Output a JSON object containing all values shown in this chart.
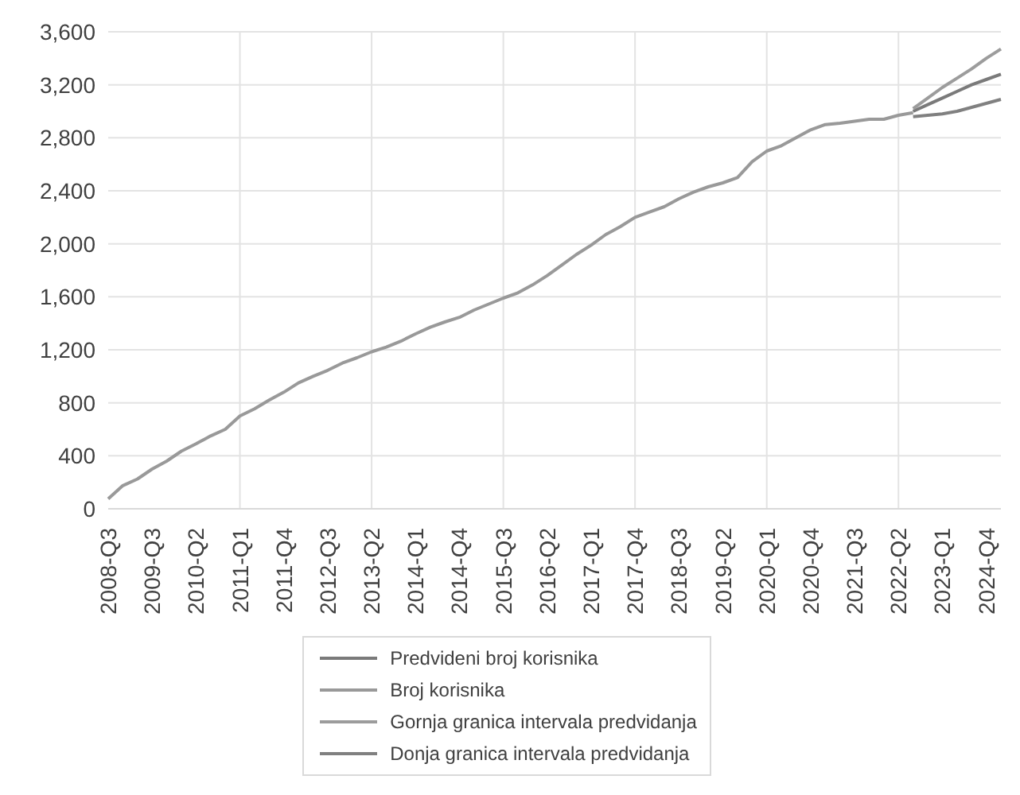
{
  "chart_data": {
    "type": "line",
    "categories": [
      "2008-Q3",
      null,
      null,
      "2009-Q3",
      null,
      null,
      "2010-Q2",
      null,
      null,
      "2011-Q1",
      null,
      null,
      "2011-Q4",
      null,
      null,
      "2012-Q3",
      null,
      null,
      "2013-Q2",
      null,
      null,
      "2014-Q1",
      null,
      null,
      "2014-Q4",
      null,
      null,
      "2015-Q3",
      null,
      null,
      "2016-Q2",
      null,
      null,
      "2017-Q1",
      null,
      null,
      "2017-Q4",
      null,
      null,
      "2018-Q3",
      null,
      null,
      "2019-Q2",
      null,
      null,
      "2020-Q1",
      null,
      null,
      "2020-Q4",
      null,
      null,
      "2021-Q3",
      null,
      null,
      "2022-Q2",
      null,
      null,
      "2023-Q1",
      null,
      null,
      "2024-Q4",
      null
    ],
    "series": [
      {
        "name": "Predvideni broj korisnika",
        "color": "#7a7a7a",
        "values": [
          null,
          null,
          null,
          null,
          null,
          null,
          null,
          null,
          null,
          null,
          null,
          null,
          null,
          null,
          null,
          null,
          null,
          null,
          null,
          null,
          null,
          null,
          null,
          null,
          null,
          null,
          null,
          null,
          null,
          null,
          null,
          null,
          null,
          null,
          null,
          null,
          null,
          null,
          null,
          null,
          null,
          null,
          null,
          null,
          null,
          null,
          null,
          null,
          null,
          null,
          null,
          null,
          null,
          null,
          null,
          3000,
          3050,
          3100,
          3150,
          3200,
          3240,
          3280
        ]
      },
      {
        "name": "Broj korisnika",
        "color": "#999999",
        "values": [
          75,
          175,
          225,
          300,
          360,
          435,
          490,
          550,
          600,
          700,
          755,
          820,
          880,
          950,
          1000,
          1045,
          1100,
          1140,
          1185,
          1220,
          1265,
          1320,
          1370,
          1410,
          1445,
          1500,
          1545,
          1590,
          1630,
          1690,
          1760,
          1840,
          1920,
          1990,
          2070,
          2130,
          2200,
          2240,
          2280,
          2340,
          2390,
          2430,
          2460,
          2500,
          2620,
          2700,
          2740,
          2800,
          2860,
          2900,
          2910,
          2925,
          2940,
          2940,
          2970,
          2990,
          null,
          null,
          null,
          null,
          null,
          null
        ]
      },
      {
        "name": "Gornja granica intervala predvidanja",
        "color": "#9c9c9c",
        "values": [
          null,
          null,
          null,
          null,
          null,
          null,
          null,
          null,
          null,
          null,
          null,
          null,
          null,
          null,
          null,
          null,
          null,
          null,
          null,
          null,
          null,
          null,
          null,
          null,
          null,
          null,
          null,
          null,
          null,
          null,
          null,
          null,
          null,
          null,
          null,
          null,
          null,
          null,
          null,
          null,
          null,
          null,
          null,
          null,
          null,
          null,
          null,
          null,
          null,
          null,
          null,
          null,
          null,
          null,
          null,
          3020,
          3100,
          3180,
          3250,
          3320,
          3400,
          3470
        ]
      },
      {
        "name": "Donja granica intervala predvidanja",
        "color": "#808080",
        "values": [
          null,
          null,
          null,
          null,
          null,
          null,
          null,
          null,
          null,
          null,
          null,
          null,
          null,
          null,
          null,
          null,
          null,
          null,
          null,
          null,
          null,
          null,
          null,
          null,
          null,
          null,
          null,
          null,
          null,
          null,
          null,
          null,
          null,
          null,
          null,
          null,
          null,
          null,
          null,
          null,
          null,
          null,
          null,
          null,
          null,
          null,
          null,
          null,
          null,
          null,
          null,
          null,
          null,
          null,
          null,
          2960,
          2970,
          2980,
          3000,
          3030,
          3060,
          3090
        ]
      }
    ],
    "ylim": [
      0,
      3600
    ],
    "yticks": [
      0,
      400,
      800,
      {
        "value": 1200,
        "label": "1,200"
      },
      {
        "value": 1600,
        "label": "1,600"
      },
      {
        "value": 2000,
        "label": "2,000"
      },
      {
        "value": 2400,
        "label": "2,400"
      },
      {
        "value": 2800,
        "label": "2,800"
      },
      {
        "value": 3200,
        "label": "3,200"
      },
      {
        "value": 3600,
        "label": "3,600"
      }
    ],
    "grid": true,
    "legend": "bottom"
  }
}
